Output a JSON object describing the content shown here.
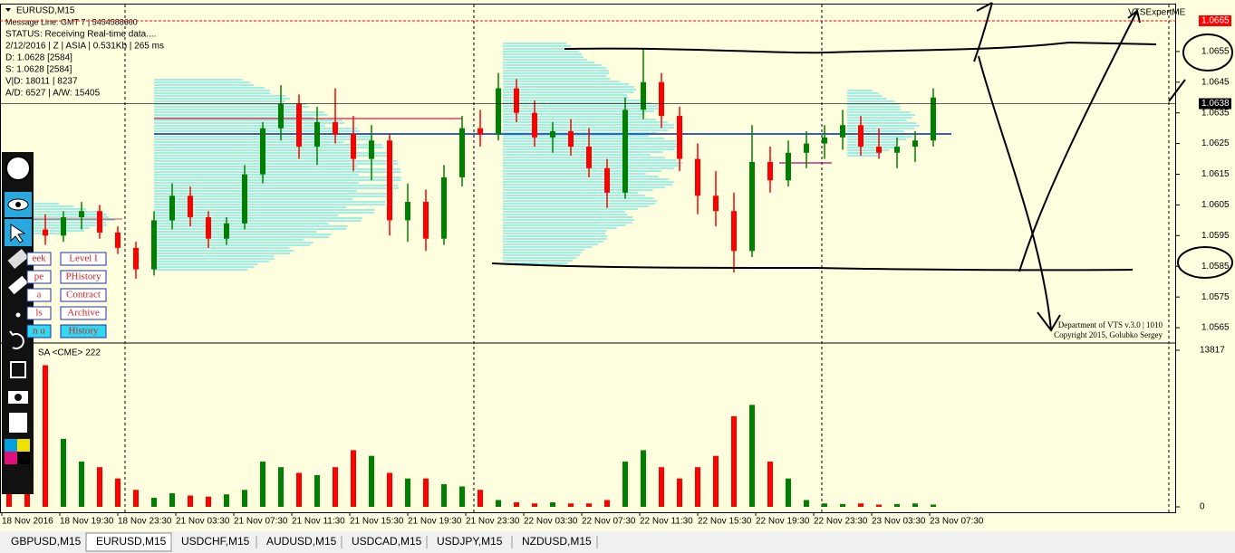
{
  "window": {
    "symbol": "EURUSD,M15",
    "expert": "VTSExpertME",
    "info_lines": [
      "Message Line: GMT 7 | 5454588660",
      "STATUS:  Receiving Real-time data....",
      "2/12/2016 | Z | ASIA | 0.531Kb | 265 ms",
      "D: 1.0628  [2584]",
      "S: 1.0628  [2584]",
      "V|D: 18011 | 8237",
      "A/D: 6527 | A/W: 15405"
    ],
    "volume_label": "SA <CME> 222",
    "copyright": [
      "Department of VTS  v.3.0 | 1010",
      "Copyright 2015, Golubko Sergey"
    ],
    "buttons": [
      "eek",
      "Level I",
      "pe",
      "PHistory",
      "a",
      "Contract",
      "ls",
      "Archive",
      "n u",
      "History"
    ],
    "tabs": [
      "GBPUSD,M15",
      "EURUSD,M15",
      "USDCHF,M15",
      "AUDUSD,M15",
      "USDCAD,M15",
      "USDJPY,M15",
      "NZDUSD,M15"
    ],
    "active_tab": 1
  },
  "chart_data": {
    "type": "candlestick",
    "up_color": "#008000",
    "down_color": "#ff0000",
    "time_labels": [
      "18 Nov 2016",
      "18 Nov 19:30",
      "18 Nov 23:30",
      "21 Nov 03:30",
      "21 Nov 07:30",
      "21 Nov 11:30",
      "21 Nov 15:30",
      "21 Nov 19:30",
      "21 Nov 23:30",
      "22 Nov 03:30",
      "22 Nov 07:30",
      "22 Nov 11:30",
      "22 Nov 15:30",
      "22 Nov 19:30",
      "22 Nov 23:30",
      "23 Nov 03:30",
      "23 Nov 07:30"
    ],
    "ylim": [
      1.05603,
      1.06703
    ],
    "yticks": [
      1.0655,
      1.0645,
      1.0635,
      1.0625,
      1.0615,
      1.0605,
      1.0595,
      1.0585,
      1.0575,
      1.0565
    ],
    "price_lines": [
      {
        "value": 1.0665,
        "color": "#ff0000"
      },
      {
        "value": 1.0638,
        "color": "#000000"
      }
    ],
    "open": [
      1.0602,
      1.06,
      1.0597,
      1.0595,
      1.0601,
      1.0603,
      1.0596,
      1.0591,
      1.0584,
      1.06,
      1.0608,
      1.0601,
      1.0594,
      1.0599,
      1.0615,
      1.063,
      1.0638,
      1.0624,
      1.0632,
      1.0628,
      1.062,
      1.0626,
      1.06,
      1.0606,
      1.0594,
      1.0614,
      1.063,
      1.0628,
      1.0643,
      1.0635,
      1.0627,
      1.0629,
      1.0624,
      1.0617,
      1.0609,
      1.0636,
      1.0645,
      1.0634,
      1.062,
      1.0608,
      1.0603,
      1.059,
      1.0619,
      1.0613,
      1.0622,
      1.0625,
      1.0627,
      1.0631,
      1.0624,
      1.0622,
      1.0624,
      1.0626
    ],
    "high": [
      1.0606,
      1.0604,
      1.0602,
      1.0603,
      1.0606,
      1.0605,
      1.0598,
      1.0593,
      1.0603,
      1.0612,
      1.0611,
      1.0603,
      1.0601,
      1.0618,
      1.0632,
      1.0644,
      1.0641,
      1.0637,
      1.0643,
      1.0634,
      1.0631,
      1.0628,
      1.0612,
      1.061,
      1.0618,
      1.0634,
      1.0636,
      1.0648,
      1.0646,
      1.0639,
      1.0632,
      1.0633,
      1.063,
      1.062,
      1.064,
      1.0656,
      1.0648,
      1.0637,
      1.0625,
      1.0616,
      1.0609,
      1.0631,
      1.0624,
      1.0626,
      1.0629,
      1.0631,
      1.0636,
      1.0634,
      1.063,
      1.0627,
      1.0629,
      1.0643
    ],
    "low": [
      1.0598,
      1.0594,
      1.0592,
      1.0593,
      1.0597,
      1.0594,
      1.0589,
      1.0581,
      1.0582,
      1.0597,
      1.0598,
      1.0591,
      1.0592,
      1.0597,
      1.0612,
      1.0626,
      1.062,
      1.0618,
      1.0625,
      1.0616,
      1.0613,
      1.0595,
      1.0593,
      1.059,
      1.0592,
      1.0611,
      1.0624,
      1.0626,
      1.0632,
      1.0624,
      1.0622,
      1.0621,
      1.0614,
      1.0604,
      1.0607,
      1.0633,
      1.063,
      1.0616,
      1.0602,
      1.0598,
      1.0583,
      1.0588,
      1.0609,
      1.0611,
      1.0617,
      1.062,
      1.0623,
      1.0621,
      1.062,
      1.0617,
      1.0619,
      1.0624
    ],
    "close": [
      1.06,
      1.0597,
      1.0595,
      1.0601,
      1.0603,
      1.0596,
      1.0591,
      1.0584,
      1.06,
      1.0608,
      1.0601,
      1.0594,
      1.0599,
      1.0615,
      1.063,
      1.0638,
      1.0624,
      1.0632,
      1.0628,
      1.062,
      1.0626,
      1.06,
      1.0606,
      1.0594,
      1.0614,
      1.063,
      1.0628,
      1.0643,
      1.0635,
      1.0627,
      1.0629,
      1.0624,
      1.0617,
      1.0609,
      1.0636,
      1.0645,
      1.0634,
      1.062,
      1.0608,
      1.0603,
      1.059,
      1.0619,
      1.0613,
      1.0622,
      1.0625,
      1.0627,
      1.0631,
      1.0624,
      1.0622,
      1.0624,
      1.0626,
      1.064
    ],
    "volume": [
      5000,
      9000,
      12500,
      6000,
      4000,
      3500,
      2500,
      1500,
      800,
      1200,
      1000,
      900,
      1100,
      1500,
      4000,
      3500,
      3000,
      2800,
      3500,
      5000,
      4500,
      3000,
      2500,
      2500,
      2000,
      1800,
      1500,
      600,
      400,
      300,
      400,
      300,
      300,
      600,
      4000,
      5000,
      3500,
      2500,
      3500,
      4500,
      8000,
      9000,
      4000,
      2500,
      600,
      300,
      250,
      300,
      200,
      250,
      300,
      200
    ],
    "vlim": [
      0,
      13817
    ],
    "vticks": [
      13817,
      0
    ]
  }
}
